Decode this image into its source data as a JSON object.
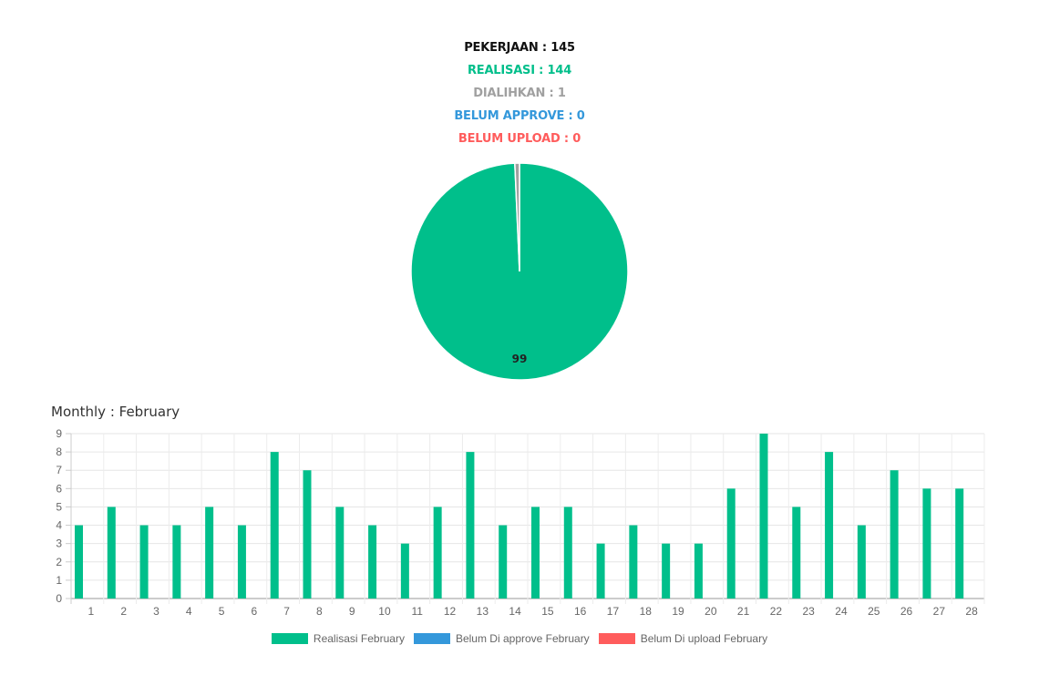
{
  "summary": {
    "pekerjaan": "PEKERJAAN : 145",
    "realisasi": "REALISASI : 144",
    "dialihkan": "DIALIHKAN : 1",
    "belum_approve": "BELUM APPROVE : 0",
    "belum_upload": "BELUM UPLOAD : 0"
  },
  "colors": {
    "black": "#111111",
    "green": "#00bf8b",
    "gray": "#a0a0a0",
    "blue": "#3498db",
    "red": "#ff5c5c"
  },
  "monthly_title": "Monthly : February",
  "chart_data": [
    {
      "type": "pie",
      "slices": [
        {
          "label": "Realisasi",
          "value": 144,
          "color": "#00bf8b"
        },
        {
          "label": "Dialihkan",
          "value": 1,
          "color": "#a0a0a0"
        }
      ],
      "data_label": "99"
    },
    {
      "type": "bar",
      "categories": [
        "1",
        "2",
        "3",
        "4",
        "5",
        "6",
        "7",
        "8",
        "9",
        "10",
        "11",
        "12",
        "13",
        "14",
        "15",
        "16",
        "17",
        "18",
        "19",
        "20",
        "21",
        "22",
        "23",
        "24",
        "25",
        "26",
        "27",
        "28"
      ],
      "series": [
        {
          "name": "Realisasi February",
          "color": "#00bf8b",
          "values": [
            4,
            5,
            4,
            4,
            5,
            4,
            8,
            7,
            5,
            4,
            3,
            5,
            8,
            4,
            5,
            5,
            3,
            4,
            3,
            3,
            6,
            9,
            5,
            8,
            4,
            7,
            6,
            6
          ]
        },
        {
          "name": "Belum Di approve February",
          "color": "#3498db",
          "values": [
            0,
            0,
            0,
            0,
            0,
            0,
            0,
            0,
            0,
            0,
            0,
            0,
            0,
            0,
            0,
            0,
            0,
            0,
            0,
            0,
            0,
            0,
            0,
            0,
            0,
            0,
            0,
            0
          ]
        },
        {
          "name": "Belum Di upload February",
          "color": "#ff5c5c",
          "values": [
            0,
            0,
            0,
            0,
            0,
            0,
            0,
            0,
            0,
            0,
            0,
            0,
            0,
            0,
            0,
            0,
            0,
            0,
            0,
            0,
            0,
            0,
            0,
            0,
            0,
            0,
            0,
            0
          ]
        }
      ],
      "ylim": [
        0,
        9
      ],
      "yticks": [
        "0",
        "1",
        "2",
        "3",
        "4",
        "5",
        "6",
        "7",
        "8",
        "9"
      ],
      "grid": true,
      "legend_position": "bottom"
    }
  ]
}
